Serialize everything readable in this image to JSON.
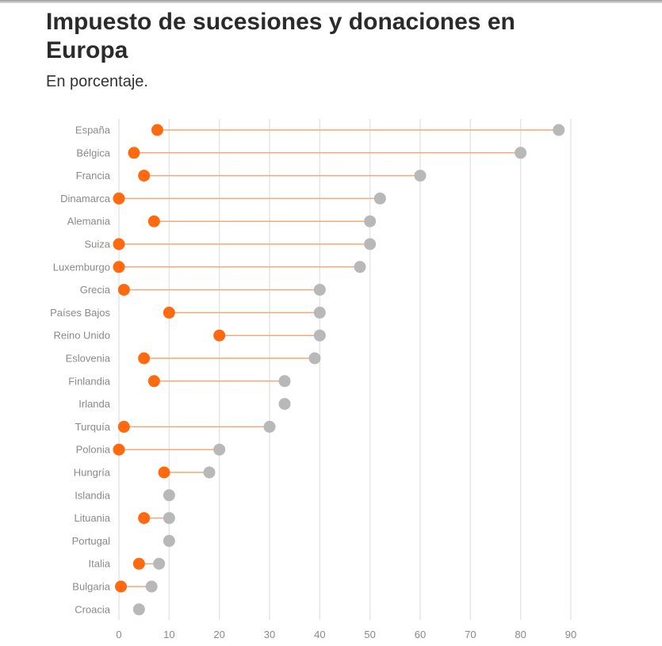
{
  "header": {
    "title": "Impuesto de sucesiones y donaciones en Europa",
    "subtitle": "En porcentaje."
  },
  "colors": {
    "min_dot": "#ff6a10",
    "max_dot": "#b8b8b8",
    "connector": "#f5a878",
    "grid": "#e6e6e6",
    "axis_text": "#8a8a8a"
  },
  "chart_data": {
    "type": "dumbbell",
    "title": "Impuesto de sucesiones y donaciones en Europa",
    "subtitle": "En porcentaje.",
    "xlim": [
      0,
      90
    ],
    "xticks": [
      0,
      10,
      20,
      30,
      40,
      50,
      60,
      70,
      80,
      90
    ],
    "grid": true,
    "categories": [
      "España",
      "Bélgica",
      "Francia",
      "Dinamarca",
      "Alemania",
      "Suiza",
      "Luxemburgo",
      "Grecia",
      "Países Bajos",
      "Reino Unido",
      "Eslovenia",
      "Finlandia",
      "Irlanda",
      "Turquía",
      "Polonia",
      "Hungría",
      "Islandia",
      "Lituania",
      "Portugal",
      "Italia",
      "Bulgaria",
      "Croacia"
    ],
    "min_values": [
      7.65,
      3,
      5,
      0,
      7,
      0,
      0,
      1,
      10,
      20,
      5,
      7,
      33,
      1,
      0,
      9,
      10,
      5,
      10,
      4,
      0.4,
      4
    ],
    "max_values": [
      87.6,
      80,
      60,
      52,
      50,
      50,
      48,
      40,
      40,
      40,
      39,
      33,
      33,
      30,
      20,
      18,
      10,
      10,
      10,
      8,
      6.5,
      4
    ]
  }
}
